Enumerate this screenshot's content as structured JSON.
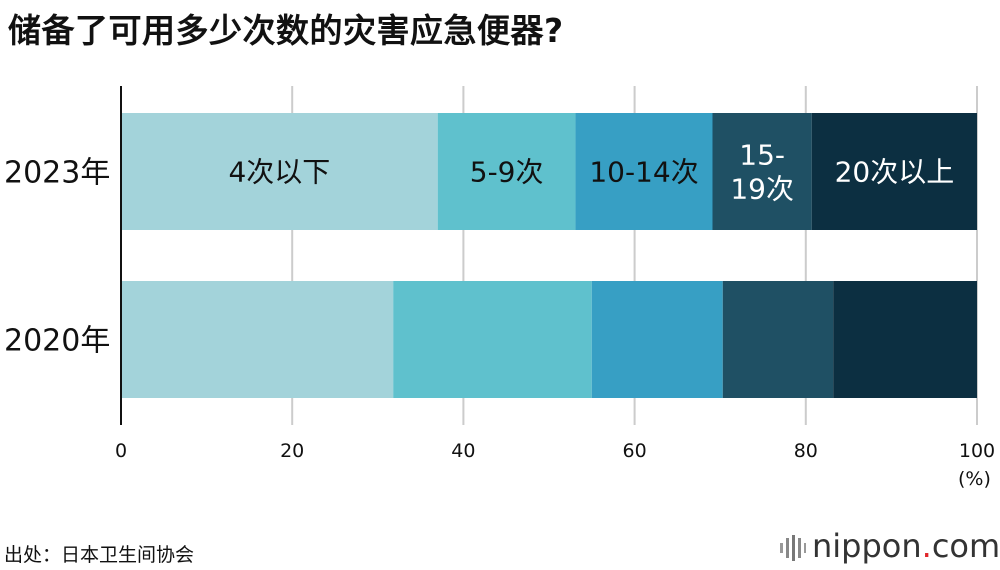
{
  "title": "储备了可用多少次数的灾害应急便器?",
  "unit": "(%)",
  "source": "出处：日本卫生间协会",
  "brand": {
    "name": "nippon",
    "dot": ".",
    "tld": "com"
  },
  "colors": {
    "segments": [
      "#a3d3da",
      "#5fc1cd",
      "#379fc4",
      "#1f5064",
      "#0c2f41"
    ],
    "grid": "#cccccc",
    "axis": "#111111",
    "brand_accent": "#e0262b"
  },
  "chart_data": {
    "type": "bar",
    "orientation": "horizontal",
    "stacked": true,
    "categories": [
      "2023年",
      "2020年"
    ],
    "series": [
      {
        "name": "4次以下",
        "values": [
          37.0,
          31.8
        ]
      },
      {
        "name": "5-9次",
        "values": [
          16.1,
          23.2
        ]
      },
      {
        "name": "10-14次",
        "values": [
          16.0,
          15.3
        ]
      },
      {
        "name": "15-\n19次",
        "values": [
          11.6,
          12.9
        ]
      },
      {
        "name": "20次以上",
        "values": [
          19.3,
          16.8
        ]
      }
    ],
    "segment_labels_on_category": "2023年",
    "xlim": [
      0,
      100
    ],
    "xticks": [
      0,
      20,
      40,
      60,
      80,
      100
    ],
    "grid": true
  }
}
